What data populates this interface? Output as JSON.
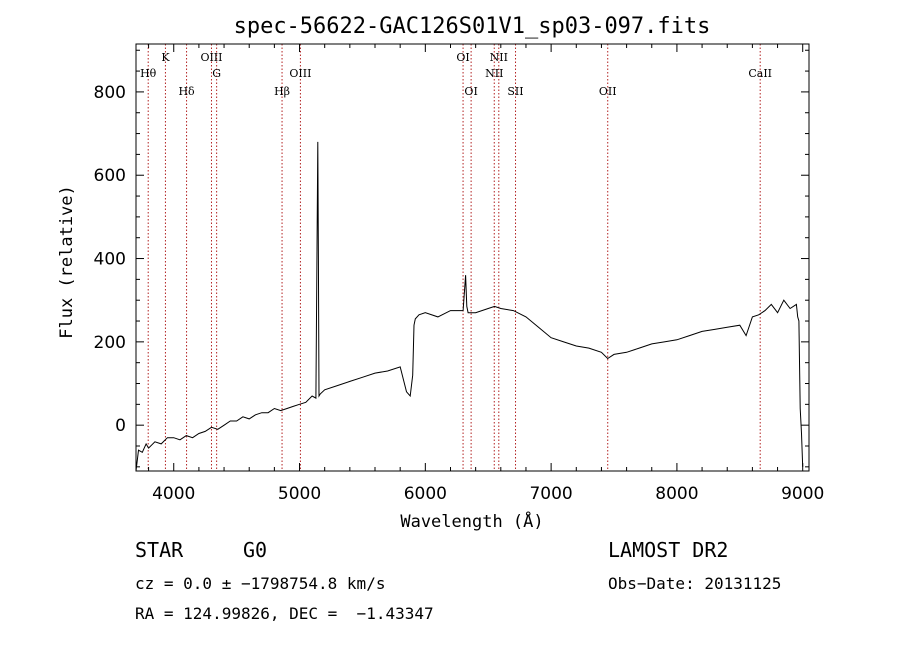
{
  "chart_data": {
    "type": "line",
    "title": "spec-56622-GAC126S01V1_sp03-097.fits",
    "xlabel": "Wavelength (Å)",
    "ylabel": "Flux (relative)",
    "xlim": [
      3700,
      9050
    ],
    "ylim": [
      -110,
      915
    ],
    "x_ticks": [
      4000,
      5000,
      6000,
      7000,
      8000,
      9000
    ],
    "y_ticks": [
      0,
      200,
      400,
      600,
      800
    ],
    "series": [
      {
        "x": [
          3700,
          3720,
          3750,
          3780,
          3800,
          3850,
          3900,
          3950,
          4000,
          4050,
          4100,
          4150,
          4200,
          4250,
          4300,
          4350,
          4400,
          4450,
          4500,
          4550,
          4600,
          4650,
          4700,
          4750,
          4800,
          4850,
          4900,
          4950,
          5000,
          5050,
          5100,
          5130,
          5145,
          5150,
          5155,
          5165,
          5200,
          5300,
          5400,
          5500,
          5600,
          5700,
          5800,
          5850,
          5880,
          5900,
          5910,
          5920,
          5950,
          6000,
          6100,
          6200,
          6300,
          6320,
          6330,
          6340,
          6400,
          6500,
          6550,
          6600,
          6700,
          6800,
          6900,
          7000,
          7100,
          7200,
          7300,
          7400,
          7450,
          7500,
          7600,
          7700,
          7800,
          7900,
          8000,
          8100,
          8200,
          8300,
          8400,
          8500,
          8550,
          8600,
          8650,
          8700,
          8750,
          8800,
          8850,
          8900,
          8950,
          8960,
          8970,
          8980,
          8990,
          9000
        ],
        "y": [
          -110,
          -60,
          -65,
          -45,
          -55,
          -40,
          -45,
          -30,
          -30,
          -35,
          -25,
          -30,
          -20,
          -15,
          -5,
          -10,
          0,
          10,
          10,
          20,
          15,
          25,
          30,
          30,
          40,
          35,
          40,
          45,
          50,
          55,
          70,
          65,
          680,
          400,
          70,
          75,
          85,
          95,
          105,
          115,
          125,
          130,
          140,
          80,
          70,
          120,
          240,
          255,
          265,
          270,
          260,
          275,
          275,
          360,
          285,
          270,
          270,
          280,
          285,
          280,
          275,
          260,
          235,
          210,
          200,
          190,
          185,
          175,
          160,
          170,
          175,
          185,
          195,
          200,
          205,
          215,
          225,
          230,
          235,
          240,
          215,
          260,
          265,
          275,
          290,
          270,
          300,
          280,
          290,
          260,
          250,
          40,
          -20,
          -100
        ]
      }
    ],
    "line_markers": [
      {
        "label": "Hθ",
        "x": 3797,
        "row": 2
      },
      {
        "label": "K",
        "x": 3934,
        "row": 1
      },
      {
        "label": "Hδ",
        "x": 4102,
        "row": 3
      },
      {
        "label": "OIII",
        "x": 4300,
        "row": 1
      },
      {
        "label": "G",
        "x": 4341,
        "row": 2
      },
      {
        "label": "Hβ",
        "x": 4861,
        "row": 3
      },
      {
        "label": "OIII",
        "x": 5007,
        "row": 2
      },
      {
        "label": "OI",
        "x": 6300,
        "row": 1
      },
      {
        "label": "OI",
        "x": 6364,
        "row": 3
      },
      {
        "label": "NII",
        "x": 6548,
        "row": 2
      },
      {
        "label": "NII",
        "x": 6584,
        "row": 1
      },
      {
        "label": "SII",
        "x": 6717,
        "row": 3
      },
      {
        "label": "OII",
        "x": 7450,
        "row": 3
      },
      {
        "label": "CaII",
        "x": 8662,
        "row": 2
      }
    ],
    "grid": false,
    "marker_color": "#b22222",
    "line_color": "#000000"
  },
  "info": {
    "class_label": "STAR",
    "subclass_label": "G0",
    "survey": "LAMOST DR2",
    "redshift_line": "cz = 0.0 ± −1798754.8 km/s",
    "obs_date": "Obs−Date: 20131125",
    "coords_line": "RA = 124.99826, DEC =  −1.43347"
  }
}
